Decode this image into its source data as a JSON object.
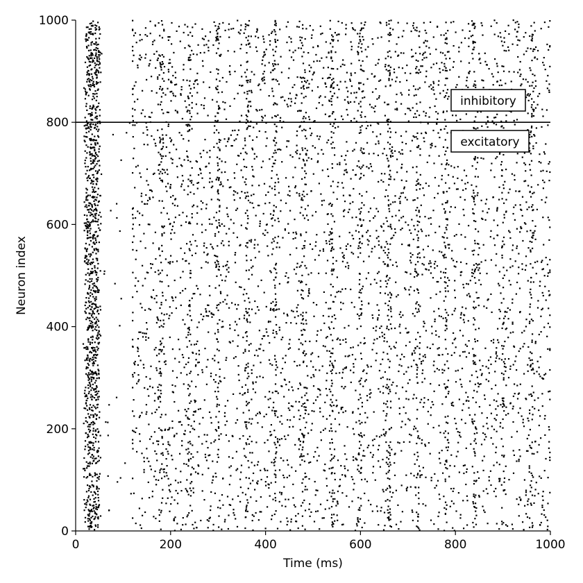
{
  "chart_data": {
    "type": "scatter",
    "title": "",
    "xlabel": "Time (ms)",
    "ylabel": "Neuron index",
    "xlim": [
      0,
      1000
    ],
    "ylim": [
      0,
      1000
    ],
    "xticks": [
      0,
      200,
      400,
      600,
      800,
      1000
    ],
    "yticks": [
      0,
      200,
      400,
      600,
      800,
      1000
    ],
    "grid": false,
    "marker_color": "#000000",
    "separator": {
      "y": 800,
      "color": "#000000"
    },
    "annotations": [
      {
        "text": "inhibitory",
        "x": 800,
        "y": 840
      },
      {
        "text": "excitatory",
        "x": 800,
        "y": 760
      }
    ],
    "series": [
      {
        "description_of_spikes": "raster of spike events; dense burst at ~15-60 ms across all neurons, quiet gap ~60-120 ms, then irregular asynchronous firing to 1000 ms",
        "burst": {
          "t_start": 12,
          "t_end": 58,
          "events": 1100
        },
        "sparse_early": {
          "t_start": 60,
          "t_end": 120,
          "events": 25
        },
        "asynchronous": {
          "t_start": 120,
          "t_end": 1000,
          "excitatory_events": 4300,
          "inhibitory_events": 1250
        }
      }
    ]
  },
  "labels": {
    "xlabel": "Time (ms)",
    "ylabel": "Neuron index",
    "inhibitory": "inhibitory",
    "excitatory": "excitatory",
    "xticks": [
      "0",
      "200",
      "400",
      "600",
      "800",
      "1000"
    ],
    "yticks": [
      "0",
      "200",
      "400",
      "600",
      "800",
      "1000"
    ]
  }
}
